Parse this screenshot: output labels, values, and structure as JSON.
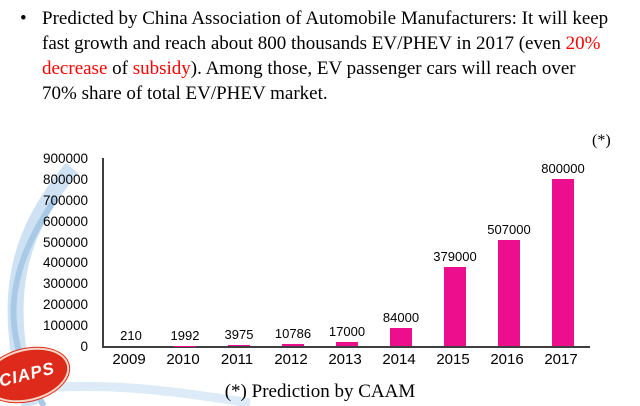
{
  "slide": {
    "bullet_char": "•",
    "paragraph_segments": [
      {
        "text": "Predicted by China Association of Automobile Manufacturers: It will keep fast growth and reach about 800 thousands EV/PHEV in 2017 (even ",
        "color": "#000000"
      },
      {
        "text": "20% decrease",
        "color": "#ff0000"
      },
      {
        "text": " of ",
        "color": "#000000"
      },
      {
        "text": "subsidy",
        "color": "#ff0000"
      },
      {
        "text": "). Among those, EV passenger cars will reach over 70% share of total EV/PHEV market.",
        "color": "#000000"
      }
    ],
    "annotation": "(*)",
    "footnote": "(*) Prediction by CAAM"
  },
  "logo": {
    "text": "CIAPS"
  },
  "chart_data": {
    "type": "bar",
    "title": "",
    "xlabel": "",
    "ylabel": "",
    "categories": [
      "2009",
      "2010",
      "2011",
      "2012",
      "2013",
      "2014",
      "2015",
      "2016",
      "2017"
    ],
    "values": [
      210,
      1992,
      3975,
      10786,
      17000,
      84000,
      379000,
      507000,
      800000
    ],
    "data_labels": [
      "210",
      "1992",
      "3975",
      "10786",
      "17000",
      "84000",
      "379000",
      "507000",
      "800000"
    ],
    "ylim": [
      0,
      900000
    ],
    "ytick_step": 100000,
    "yticks": [
      "900000",
      "800000",
      "700000",
      "600000",
      "500000",
      "400000",
      "300000",
      "200000",
      "100000",
      "0"
    ],
    "bar_color": "#ec0e8c",
    "grid": false,
    "legend": "none",
    "annotation": {
      "text": "(*)",
      "target": "2017"
    }
  }
}
